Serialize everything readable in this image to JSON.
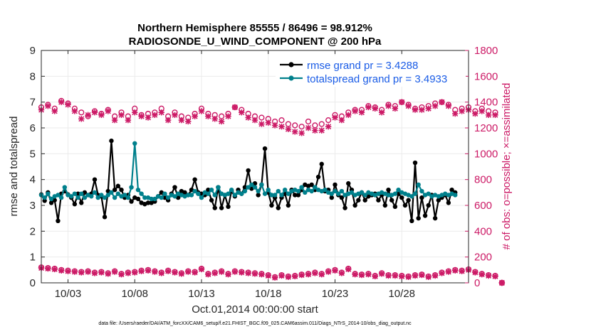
{
  "chart_data": {
    "type": "line",
    "title": "Northern Hemisphere 85555 / 86496 = 98.912%",
    "subtitle": "RADIOSONDE_U_WIND_COMPONENT @ 200 hPa",
    "xlabel": "Oct.01,2014 00:00:00 start",
    "ylabel": "rmse and totalspread",
    "ylabel_right": "# of obs: o=possible; ×=assimilated",
    "footer": "data file: /Users/raeder/DAI/ATM_forcXX/CAM6_setup/f.e21.FHIST_BGC.f09_025.CAM6assim.011/Diags_NTrS_2014-10/obs_diag_output.nc",
    "xlim": [
      1,
      33
    ],
    "ylim": [
      0,
      9
    ],
    "ylim_right": [
      0,
      1800
    ],
    "xticks": [
      3,
      8,
      13,
      18,
      23,
      28
    ],
    "xtick_labels": [
      "10/03",
      "10/08",
      "10/13",
      "10/18",
      "10/23",
      "10/28"
    ],
    "yticks": [
      "0",
      "1",
      "2",
      "3",
      "4",
      "5",
      "6",
      "7",
      "8",
      "9"
    ],
    "yticks_right": [
      "0",
      "200",
      "400",
      "600",
      "800",
      "1000",
      "1200",
      "1400",
      "1600",
      "1800"
    ],
    "grid": true,
    "legend_position": "top-right",
    "colors": {
      "rmse": "#000000",
      "spread": "#00808c",
      "obs": "#cc1a66"
    },
    "series": [
      {
        "name": "rmse grand pr = 3.4288",
        "axis": "left",
        "x_start": 1.0,
        "x_step": 0.25,
        "values": [
          3.42,
          3.18,
          3.5,
          3.1,
          3.2,
          2.4,
          3.45,
          3.55,
          3.42,
          3.3,
          3.05,
          3.45,
          3.1,
          3.5,
          3.4,
          3.45,
          4.0,
          3.4,
          3.35,
          2.55,
          3.55,
          5.5,
          3.6,
          3.75,
          3.6,
          3.3,
          3.4,
          3.15,
          3.3,
          3.25,
          3.1,
          3.05,
          3.1,
          3.1,
          3.15,
          3.35,
          3.5,
          3.3,
          3.2,
          3.45,
          3.7,
          3.3,
          3.55,
          3.5,
          3.4,
          3.6,
          4.0,
          3.5,
          3.45,
          3.4,
          3.6,
          3.2,
          2.9,
          3.7,
          2.9,
          3.4,
          2.95,
          3.55,
          3.35,
          3.6,
          3.45,
          3.7,
          4.35,
          3.65,
          3.85,
          3.4,
          3.8,
          5.2,
          3.5,
          3.0,
          3.3,
          2.9,
          3.3,
          3.45,
          3.0,
          3.6,
          3.4,
          3.4,
          3.6,
          3.8,
          3.75,
          3.8,
          3.6,
          4.1,
          4.6,
          3.55,
          3.6,
          3.3,
          3.8,
          3.4,
          3.3,
          2.9,
          3.85,
          3.6,
          3.0,
          3.2,
          3.5,
          3.2,
          3.35,
          3.4,
          3.45,
          3.2,
          3.4,
          3.0,
          3.6,
          3.2,
          2.95,
          3.45,
          3.3,
          3.0,
          3.2,
          2.4,
          4.65,
          2.5,
          3.3,
          2.6,
          3.0,
          3.4,
          2.5,
          3.2,
          3.3,
          3.4,
          3.1,
          3.6,
          3.5
        ]
      },
      {
        "name": "totalspread grand pr = 3.4933",
        "axis": "left",
        "x_start": 1.0,
        "x_step": 0.25,
        "values": [
          3.4,
          3.3,
          3.45,
          3.25,
          3.35,
          3.4,
          3.3,
          3.7,
          3.4,
          3.35,
          3.45,
          3.3,
          3.45,
          3.3,
          3.4,
          3.35,
          3.5,
          3.3,
          3.4,
          3.3,
          3.4,
          3.5,
          3.3,
          3.45,
          3.35,
          3.4,
          3.3,
          3.7,
          5.4,
          3.6,
          3.45,
          3.3,
          3.3,
          3.25,
          3.25,
          3.35,
          3.3,
          3.45,
          3.3,
          3.4,
          3.35,
          3.45,
          3.4,
          3.35,
          3.4,
          3.4,
          3.55,
          3.45,
          3.3,
          3.5,
          3.45,
          3.6,
          3.4,
          3.7,
          3.45,
          3.4,
          3.45,
          3.6,
          3.4,
          3.5,
          3.45,
          3.55,
          3.7,
          3.8,
          3.7,
          3.55,
          3.8,
          3.45,
          3.6,
          3.4,
          3.4,
          3.55,
          3.4,
          3.6,
          3.45,
          3.55,
          3.6,
          3.55,
          3.7,
          3.5,
          3.6,
          3.55,
          3.7,
          3.6,
          3.55,
          3.6,
          3.5,
          3.45,
          3.55,
          3.45,
          3.55,
          3.4,
          3.45,
          3.5,
          3.4,
          3.45,
          3.5,
          3.4,
          3.5,
          3.45,
          3.4,
          3.45,
          3.5,
          3.45,
          3.4,
          3.4,
          3.45,
          3.6,
          3.5,
          3.45,
          3.4,
          3.35,
          3.45,
          3.8,
          3.55,
          3.4,
          3.45,
          3.35,
          3.4,
          3.35,
          3.4,
          3.45,
          3.4,
          3.45,
          3.4
        ]
      },
      {
        "name": "possible",
        "axis": "right",
        "marker": "o",
        "x_start": 1.0,
        "x_step": 0.5,
        "values": [
          1360,
          1380,
          1350,
          1410,
          1390,
          1350,
          1320,
          1290,
          1330,
          1310,
          1340,
          1290,
          1320,
          1290,
          1350,
          1300,
          1310,
          1320,
          1350,
          1290,
          1320,
          1290,
          1280,
          1310,
          1350,
          1310,
          1300,
          1290,
          1310,
          1360,
          1340,
          1310,
          1290,
          1280,
          1270,
          1250,
          1260,
          1230,
          1220,
          1210,
          1250,
          1220,
          1230,
          1260,
          1300,
          1290,
          1320,
          1340,
          1340,
          1370,
          1360,
          1340,
          1380,
          1370,
          1400,
          1380,
          1350,
          1360,
          1370,
          1390,
          1400,
          1380,
          1340,
          1350,
          1360,
          1330,
          1350,
          1330,
          1320
        ],
        "last": 0
      },
      {
        "name": "assimilated",
        "axis": "right",
        "marker": "x",
        "x_start": 1.0,
        "x_step": 0.5,
        "values": [
          1340,
          1370,
          1330,
          1400,
          1380,
          1330,
          1270,
          1300,
          1320,
          1300,
          1330,
          1260,
          1300,
          1260,
          1320,
          1290,
          1280,
          1300,
          1320,
          1260,
          1300,
          1260,
          1250,
          1290,
          1330,
          1290,
          1270,
          1250,
          1290,
          1360,
          1320,
          1280,
          1260,
          1230,
          1240,
          1220,
          1210,
          1190,
          1170,
          1160,
          1200,
          1180,
          1180,
          1210,
          1280,
          1260,
          1300,
          1330,
          1320,
          1360,
          1350,
          1320,
          1370,
          1350,
          1400,
          1370,
          1340,
          1340,
          1350,
          1370,
          1400,
          1370,
          1310,
          1330,
          1340,
          1310,
          1330,
          1300,
          1300
        ],
        "last": 0
      },
      {
        "name": "possible (low group)",
        "axis": "right",
        "marker": "o",
        "x_start": 1.0,
        "x_step": 0.5,
        "values": [
          120,
          115,
          110,
          100,
          95,
          90,
          85,
          90,
          80,
          85,
          75,
          90,
          70,
          80,
          85,
          95,
          100,
          90,
          80,
          95,
          85,
          75,
          90,
          85,
          110,
          70,
          80,
          90,
          70,
          90,
          85,
          80,
          75,
          70,
          60,
          45,
          60,
          50,
          55,
          65,
          70,
          80,
          70,
          90,
          100,
          80,
          110,
          70,
          65,
          70,
          55,
          75,
          60,
          60,
          55,
          50,
          60,
          65,
          50,
          60,
          80,
          90,
          100,
          95,
          105,
          85,
          70,
          60,
          55
        ],
        "last": 0
      },
      {
        "name": "assimilated (low group)",
        "axis": "right",
        "marker": "x",
        "x_start": 1.0,
        "x_step": 0.5,
        "values": [
          115,
          110,
          105,
          95,
          90,
          85,
          80,
          85,
          75,
          80,
          70,
          85,
          65,
          75,
          80,
          90,
          95,
          85,
          75,
          90,
          80,
          70,
          85,
          80,
          105,
          65,
          75,
          85,
          65,
          85,
          80,
          75,
          70,
          65,
          55,
          40,
          55,
          45,
          50,
          60,
          65,
          75,
          65,
          85,
          95,
          75,
          105,
          65,
          60,
          65,
          50,
          70,
          55,
          55,
          50,
          45,
          55,
          60,
          45,
          55,
          75,
          85,
          95,
          90,
          100,
          80,
          65,
          55,
          50
        ],
        "last": 0
      }
    ]
  }
}
